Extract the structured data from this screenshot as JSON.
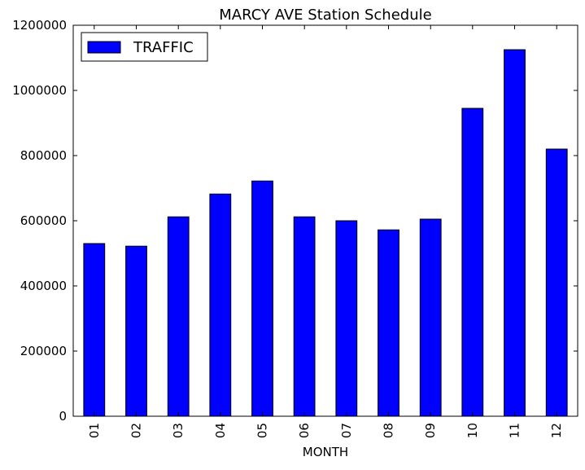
{
  "chart_data": {
    "type": "bar",
    "title": "MARCY AVE Station Schedule",
    "xlabel": "MONTH",
    "ylabel": "",
    "categories": [
      "01",
      "02",
      "03",
      "04",
      "05",
      "06",
      "07",
      "08",
      "09",
      "10",
      "11",
      "12"
    ],
    "series": [
      {
        "name": "TRAFFIC",
        "color": "#0000ff",
        "values": [
          530000,
          522000,
          612000,
          682000,
          722000,
          612000,
          600000,
          572000,
          605000,
          945000,
          1125000,
          820000
        ]
      }
    ],
    "ylim": [
      0,
      1200000
    ],
    "yticks": [
      "0",
      "200000",
      "400000",
      "600000",
      "800000",
      "1000000",
      "1200000"
    ],
    "grid": false,
    "legend_position": "top-left"
  }
}
